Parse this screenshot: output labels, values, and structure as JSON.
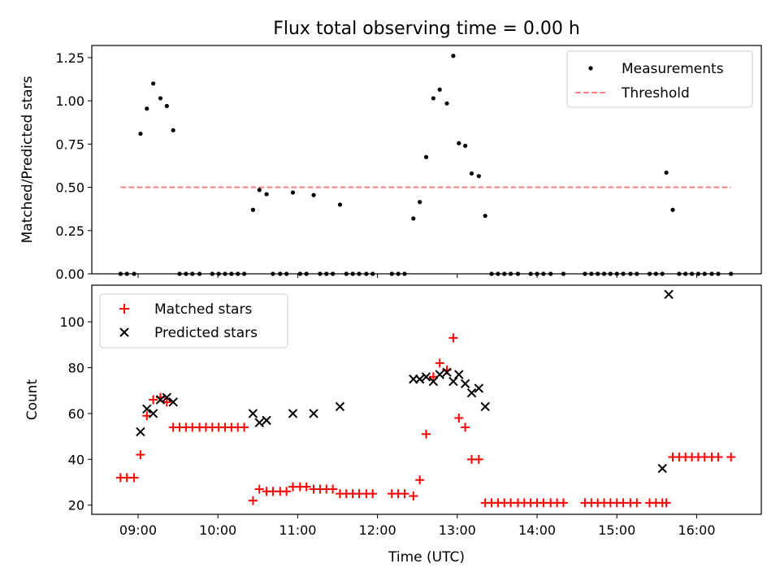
{
  "figure_title": "Flux total observing time = 0.00 h",
  "chart_data": [
    {
      "type": "scatter",
      "title": "Flux total observing time = 0.00 h",
      "xlabel": "",
      "ylabel": "Matched/Predicted stars",
      "xlim": [
        8.42,
        16.81
      ],
      "ylim": [
        0.0,
        1.32
      ],
      "yticks": [
        0.0,
        0.25,
        0.5,
        0.75,
        1.0,
        1.25
      ],
      "ytick_labels": [
        "0.00",
        "0.25",
        "0.50",
        "0.75",
        "1.00",
        "1.25"
      ],
      "xticks": [
        9,
        10,
        11,
        12,
        13,
        14,
        15,
        16
      ],
      "legend_position": "top-right",
      "grid": false,
      "series": [
        {
          "name": "Measurements",
          "marker": "dot",
          "color": "#000000",
          "x": [
            8.78,
            8.86,
            8.95,
            9.03,
            9.11,
            9.19,
            9.28,
            9.36,
            9.44,
            9.52,
            9.6,
            9.68,
            9.77,
            9.93,
            10.01,
            10.09,
            10.17,
            10.25,
            10.33,
            10.44,
            10.52,
            10.61,
            10.69,
            10.78,
            10.86,
            10.94,
            11.03,
            11.11,
            11.2,
            11.28,
            11.36,
            11.44,
            11.53,
            11.61,
            11.69,
            11.77,
            11.86,
            11.94,
            12.18,
            12.26,
            12.34,
            12.45,
            12.53,
            12.61,
            12.7,
            12.78,
            12.87,
            12.95,
            13.02,
            13.1,
            13.18,
            13.27,
            13.35,
            13.43,
            13.51,
            13.59,
            13.67,
            13.76,
            13.92,
            14.0,
            14.08,
            14.17,
            14.33,
            14.6,
            14.68,
            14.76,
            14.84,
            14.92,
            15.0,
            15.08,
            15.17,
            15.25,
            15.41,
            15.49,
            15.57,
            15.62,
            15.7,
            15.78,
            15.86,
            15.94,
            16.02,
            16.1,
            16.19,
            16.27,
            16.43
          ],
          "y": [
            0.0,
            0.0,
            0.0,
            0.81,
            0.955,
            1.1,
            1.015,
            0.97,
            0.83,
            0.0,
            0.0,
            0.0,
            0.0,
            0.0,
            0.0,
            0.0,
            0.0,
            0.0,
            0.0,
            0.37,
            0.485,
            0.46,
            0.0,
            0.0,
            0.0,
            0.47,
            0.0,
            0.0,
            0.455,
            0.0,
            0.0,
            0.0,
            0.4,
            0.0,
            0.0,
            0.0,
            0.0,
            0.0,
            0.0,
            0.0,
            0.0,
            0.32,
            0.415,
            0.675,
            1.015,
            1.065,
            0.985,
            1.26,
            0.755,
            0.74,
            0.58,
            0.565,
            0.335,
            0.0,
            0.0,
            0.0,
            0.0,
            0.0,
            0.0,
            0.0,
            0.0,
            0.0,
            0.0,
            0.0,
            0.0,
            0.0,
            0.0,
            0.0,
            0.0,
            0.0,
            0.0,
            0.0,
            0.0,
            0.0,
            0.0,
            0.585,
            0.37,
            0.0,
            0.0,
            0.0,
            0.0,
            0.0,
            0.0,
            0.0,
            0.0
          ]
        },
        {
          "name": "Threshold",
          "marker": "dashed-line",
          "color": "#ff8080",
          "x": [
            8.78,
            16.43
          ],
          "y": [
            0.5,
            0.5
          ]
        }
      ]
    },
    {
      "type": "scatter",
      "title": "",
      "xlabel": "Time (UTC)",
      "ylabel": "Count",
      "xlim": [
        8.42,
        16.81
      ],
      "ylim": [
        16,
        116
      ],
      "yticks": [
        20,
        40,
        60,
        80,
        100
      ],
      "xticks": [
        9,
        10,
        11,
        12,
        13,
        14,
        15,
        16
      ],
      "xtick_labels": [
        "09:00",
        "10:00",
        "11:00",
        "12:00",
        "13:00",
        "14:00",
        "15:00",
        "16:00"
      ],
      "legend_position": "top-left",
      "grid": false,
      "series": [
        {
          "name": "Matched stars",
          "marker": "plus",
          "color": "#ff0000",
          "x": [
            8.78,
            8.86,
            8.95,
            9.03,
            9.11,
            9.19,
            9.28,
            9.36,
            9.44,
            9.52,
            9.6,
            9.68,
            9.77,
            9.85,
            9.93,
            10.01,
            10.09,
            10.17,
            10.25,
            10.33,
            10.44,
            10.52,
            10.61,
            10.69,
            10.78,
            10.86,
            10.94,
            11.03,
            11.11,
            11.2,
            11.28,
            11.36,
            11.44,
            11.53,
            11.61,
            11.69,
            11.77,
            11.86,
            11.94,
            12.18,
            12.26,
            12.34,
            12.45,
            12.53,
            12.61,
            12.7,
            12.78,
            12.87,
            12.95,
            13.02,
            13.1,
            13.18,
            13.27,
            13.35,
            13.43,
            13.51,
            13.59,
            13.67,
            13.76,
            13.84,
            13.92,
            14.0,
            14.08,
            14.17,
            14.25,
            14.33,
            14.6,
            14.68,
            14.76,
            14.84,
            14.92,
            15.0,
            15.08,
            15.17,
            15.25,
            15.41,
            15.49,
            15.57,
            15.62,
            15.7,
            15.78,
            15.86,
            15.94,
            16.02,
            16.1,
            16.19,
            16.27,
            16.43
          ],
          "y": [
            32,
            32,
            32,
            42,
            59,
            66,
            67,
            65,
            54,
            54,
            54,
            54,
            54,
            54,
            54,
            54,
            54,
            54,
            54,
            54,
            22,
            27,
            26,
            26,
            26,
            26,
            28,
            28,
            28,
            27,
            27,
            27,
            27,
            25,
            25,
            25,
            25,
            25,
            25,
            25,
            25,
            25,
            24,
            31,
            51,
            76,
            82,
            79,
            93,
            58,
            54,
            40,
            40,
            21,
            21,
            21,
            21,
            21,
            21,
            21,
            21,
            21,
            21,
            21,
            21,
            21,
            21,
            21,
            21,
            21,
            21,
            21,
            21,
            21,
            21,
            21,
            21,
            21,
            21,
            41,
            41,
            41,
            41,
            41,
            41,
            41,
            41,
            41
          ]
        },
        {
          "name": "Predicted stars",
          "marker": "x",
          "color": "#000000",
          "x": [
            9.03,
            9.11,
            9.19,
            9.28,
            9.36,
            9.44,
            10.44,
            10.52,
            10.61,
            10.94,
            11.2,
            11.53,
            12.45,
            12.53,
            12.61,
            12.7,
            12.78,
            12.87,
            12.95,
            13.02,
            13.1,
            13.18,
            13.27,
            13.35,
            15.57,
            15.65
          ],
          "y": [
            52,
            62,
            60,
            66,
            67,
            65,
            60,
            56,
            57,
            60,
            60,
            63,
            75,
            75,
            76,
            74,
            77,
            78,
            74,
            77,
            73,
            69,
            71,
            63,
            36,
            112
          ]
        }
      ]
    }
  ]
}
